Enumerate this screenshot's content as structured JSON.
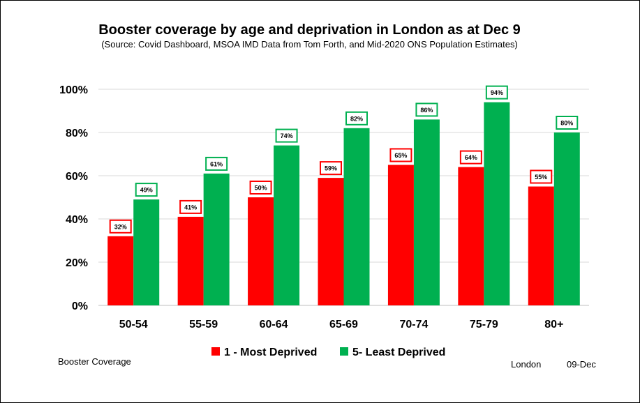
{
  "chart_data": {
    "type": "bar",
    "title": "Booster coverage by age and deprivation in London as at Dec 9",
    "subtitle": "(Source: Covid Dashboard, MSOA IMD  Data from Tom Forth, and Mid-2020 ONS Population Estimates)",
    "categories": [
      "50-54",
      "55-59",
      "60-64",
      "65-69",
      "70-74",
      "75-79",
      "80+"
    ],
    "series": [
      {
        "name": "1 - Most Deprived",
        "color": "#ff0000",
        "values": [
          32,
          41,
          50,
          59,
          65,
          64,
          55
        ],
        "labels": [
          "32%",
          "41%",
          "50%",
          "59%",
          "65%",
          "64%",
          "55%"
        ]
      },
      {
        "name": "5- Least Deprived",
        "color": "#00b050",
        "values": [
          49,
          61,
          74,
          82,
          86,
          94,
          80
        ],
        "labels": [
          "49%",
          "61%",
          "74%",
          "82%",
          "86%",
          "94%",
          "80%"
        ]
      }
    ],
    "ylim": [
      0,
      100
    ],
    "yticks": [
      0,
      20,
      40,
      60,
      80,
      100
    ],
    "ytick_labels": [
      "0%",
      "20%",
      "40%",
      "60%",
      "80%",
      "100%"
    ],
    "xlabel": "",
    "ylabel": "",
    "grid": true,
    "legend_position": "bottom"
  },
  "footer": {
    "left": "Booster Coverage",
    "region": "London",
    "date": "09-Dec"
  }
}
